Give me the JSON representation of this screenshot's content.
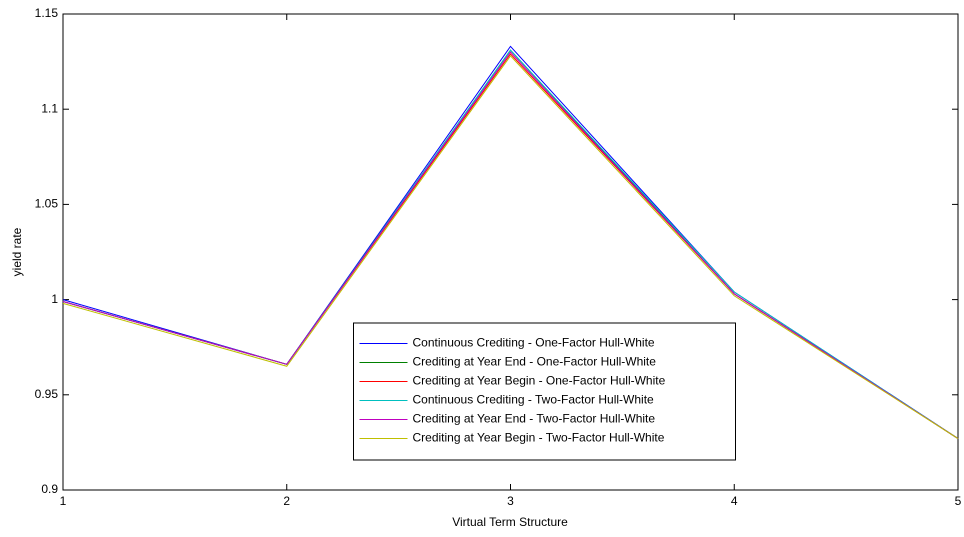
{
  "chart_data": {
    "type": "line",
    "x_label": "Virtual Term Structure",
    "y_label": "yield rate",
    "x": [
      1,
      2,
      3,
      4,
      5
    ],
    "xlim": [
      1,
      5
    ],
    "xticks": [
      1,
      2,
      3,
      4,
      5
    ],
    "ylim": [
      0.9,
      1.15
    ],
    "yticks": [
      0.9,
      0.95,
      1,
      1.05,
      1.1,
      1.15
    ],
    "grid": false,
    "legend_location": "south",
    "series": [
      {
        "name": "Continuous Crediting - One-Factor Hull-White",
        "color": "#0000ff",
        "values": [
          1.0,
          0.966,
          1.133,
          1.004,
          0.927
        ]
      },
      {
        "name": "Crediting at Year End - One-Factor Hull-White",
        "color": "#008000",
        "values": [
          0.999,
          0.966,
          1.131,
          1.003,
          0.927
        ]
      },
      {
        "name": "Crediting at Year Begin - One-Factor Hull-White",
        "color": "#ff0000",
        "values": [
          0.999,
          0.966,
          1.129,
          1.003,
          0.927
        ]
      },
      {
        "name": "Continuous Crediting - Two-Factor Hull-White",
        "color": "#00bfbf",
        "values": [
          0.999,
          0.966,
          1.131,
          1.004,
          0.927
        ]
      },
      {
        "name": "Crediting at Year End - Two-Factor Hull-White",
        "color": "#bf00bf",
        "values": [
          0.999,
          0.966,
          1.13,
          1.003,
          0.927
        ]
      },
      {
        "name": "Crediting at Year Begin - Two-Factor Hull-White",
        "color": "#bfbf00",
        "values": [
          0.998,
          0.965,
          1.128,
          1.002,
          0.927
        ]
      }
    ]
  }
}
